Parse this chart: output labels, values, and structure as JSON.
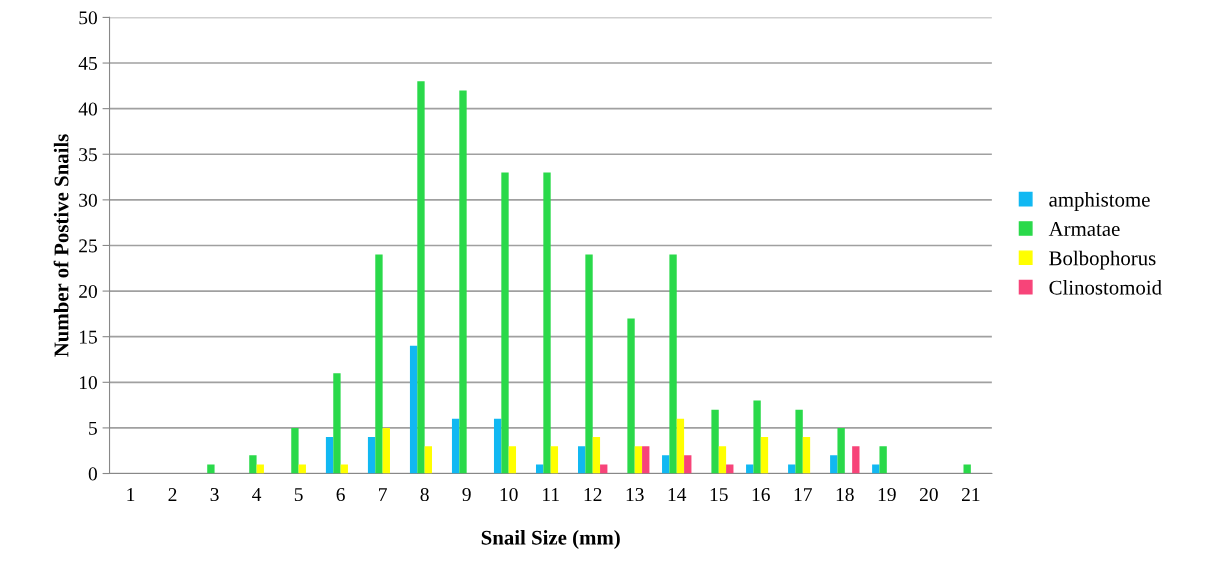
{
  "chart_data": {
    "type": "bar",
    "xlabel": "Snail Size (mm)",
    "ylabel": "Number of Postive Snails",
    "categories": [
      "1",
      "2",
      "3",
      "4",
      "5",
      "6",
      "7",
      "8",
      "9",
      "10",
      "11",
      "12",
      "13",
      "14",
      "15",
      "16",
      "17",
      "18",
      "19",
      "20",
      "21"
    ],
    "series": [
      {
        "name": "amphistome",
        "color": "#11b8f2",
        "values": [
          0,
          0,
          0,
          0,
          0,
          4,
          4,
          14,
          6,
          6,
          1,
          3,
          0,
          2,
          0,
          1,
          1,
          2,
          1,
          0,
          0
        ]
      },
      {
        "name": "Armatae",
        "color": "#2ad94a",
        "values": [
          0,
          0,
          1,
          2,
          5,
          11,
          24,
          43,
          42,
          33,
          33,
          24,
          17,
          24,
          7,
          8,
          7,
          5,
          3,
          0,
          1
        ]
      },
      {
        "name": "Bolbophorus",
        "color": "#ffff00",
        "values": [
          0,
          0,
          0,
          1,
          1,
          1,
          5,
          3,
          0,
          3,
          3,
          4,
          3,
          6,
          3,
          4,
          4,
          0,
          0,
          0,
          0
        ]
      },
      {
        "name": "Clinostomoid",
        "color": "#f74479",
        "values": [
          0,
          0,
          0,
          0,
          0,
          0,
          0,
          0,
          0,
          0,
          0,
          1,
          3,
          2,
          1,
          0,
          0,
          3,
          0,
          0,
          0
        ]
      }
    ],
    "ylim": [
      0,
      50
    ],
    "yticks": [
      0,
      5,
      10,
      15,
      20,
      25,
      30,
      35,
      40,
      45,
      50
    ],
    "grid": "y",
    "legend": "right"
  }
}
